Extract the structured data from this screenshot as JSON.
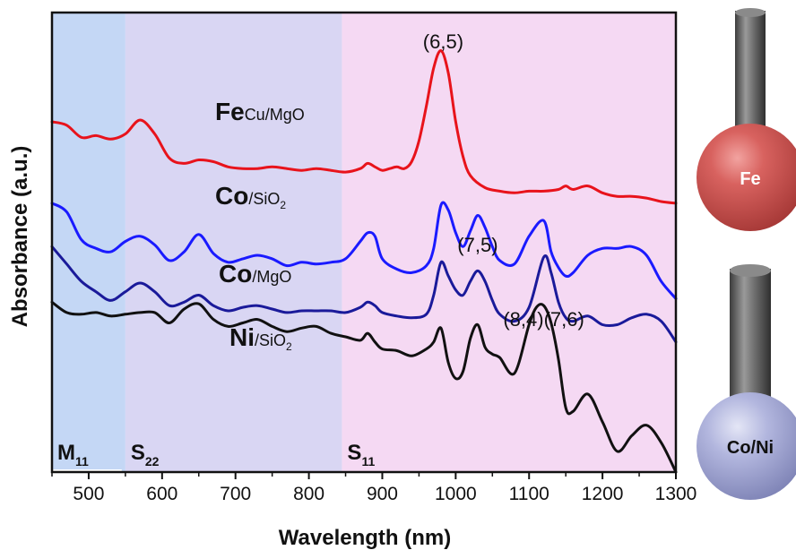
{
  "chart_data": {
    "type": "line",
    "xlabel": "Wavelength (nm)",
    "ylabel": "Absorbance (a.u.)",
    "xlim": [
      450,
      1300
    ],
    "x_ticks": [
      500,
      600,
      700,
      800,
      900,
      1000,
      1100,
      1200,
      1300
    ],
    "grid": false,
    "regions": [
      {
        "label": "M",
        "subscript": "11",
        "x_range": [
          450,
          550
        ],
        "color": "#c4d7f5"
      },
      {
        "label": "S",
        "subscript": "22",
        "x_range": [
          550,
          845
        ],
        "color": "#d9d6f3"
      },
      {
        "label": "S",
        "subscript": "11",
        "x_range": [
          845,
          1300
        ],
        "color": "#f5d9f3"
      }
    ],
    "annotations": [
      {
        "text": "(6,5)",
        "x": 983
      },
      {
        "text": "(7,5)",
        "x": 1030
      },
      {
        "text": "(8,4)(7,6)",
        "x": 1120
      }
    ],
    "series": [
      {
        "name_main": "Fe",
        "name_sub": "Cu/MgO",
        "name_sub2": "",
        "color": "#e8131b",
        "x": [
          450,
          470,
          490,
          510,
          530,
          550,
          570,
          590,
          610,
          630,
          650,
          670,
          690,
          710,
          730,
          750,
          770,
          790,
          810,
          830,
          850,
          870,
          880,
          890,
          900,
          910,
          920,
          930,
          940,
          950,
          960,
          970,
          980,
          990,
          1000,
          1010,
          1020,
          1040,
          1060,
          1080,
          1100,
          1120,
          1140,
          1150,
          1160,
          1180,
          1200,
          1220,
          1240,
          1260,
          1280,
          1300
        ],
        "y": [
          0.87,
          0.85,
          0.78,
          0.79,
          0.77,
          0.8,
          0.88,
          0.8,
          0.66,
          0.63,
          0.65,
          0.64,
          0.61,
          0.6,
          0.6,
          0.61,
          0.6,
          0.59,
          0.6,
          0.59,
          0.58,
          0.6,
          0.63,
          0.61,
          0.59,
          0.6,
          0.61,
          0.6,
          0.64,
          0.76,
          0.96,
          1.18,
          1.28,
          1.15,
          0.87,
          0.67,
          0.56,
          0.49,
          0.47,
          0.46,
          0.47,
          0.47,
          0.48,
          0.5,
          0.48,
          0.5,
          0.46,
          0.44,
          0.44,
          0.43,
          0.41,
          0.4
        ]
      },
      {
        "name_main": "Co",
        "name_sub": "/SiO",
        "name_sub2": "2",
        "color": "#1a1aff",
        "x": [
          450,
          470,
          490,
          510,
          530,
          550,
          570,
          590,
          610,
          630,
          650,
          670,
          690,
          710,
          730,
          750,
          770,
          790,
          810,
          830,
          850,
          870,
          880,
          890,
          900,
          920,
          940,
          960,
          970,
          980,
          990,
          1000,
          1010,
          1020,
          1030,
          1040,
          1050,
          1060,
          1080,
          1100,
          1120,
          1130,
          1140,
          1150,
          1160,
          1180,
          1200,
          1220,
          1240,
          1260,
          1280,
          1300
        ],
        "y": [
          0.4,
          0.35,
          0.19,
          0.14,
          0.12,
          0.18,
          0.21,
          0.16,
          0.07,
          0.12,
          0.22,
          0.11,
          0.06,
          0.08,
          0.1,
          0.08,
          0.04,
          0.06,
          0.05,
          0.06,
          0.08,
          0.18,
          0.23,
          0.21,
          0.08,
          0.02,
          0.0,
          0.04,
          0.14,
          0.39,
          0.36,
          0.23,
          0.15,
          0.24,
          0.33,
          0.26,
          0.15,
          0.07,
          0.05,
          0.21,
          0.3,
          0.12,
          0.03,
          -0.02,
          0.0,
          0.1,
          0.14,
          0.14,
          0.15,
          0.1,
          -0.05,
          -0.15
        ]
      },
      {
        "name_main": "Co",
        "name_sub": "/MgO",
        "name_sub2": "",
        "color": "#1a1a9a",
        "x": [
          450,
          470,
          490,
          510,
          530,
          550,
          570,
          590,
          610,
          630,
          650,
          670,
          690,
          710,
          730,
          750,
          770,
          790,
          810,
          830,
          850,
          870,
          880,
          890,
          900,
          920,
          940,
          960,
          970,
          980,
          990,
          1000,
          1010,
          1020,
          1030,
          1040,
          1050,
          1060,
          1080,
          1100,
          1120,
          1130,
          1140,
          1150,
          1160,
          1180,
          1200,
          1220,
          1240,
          1260,
          1280,
          1300
        ],
        "y": [
          0.15,
          0.05,
          -0.05,
          -0.11,
          -0.16,
          -0.11,
          -0.06,
          -0.11,
          -0.19,
          -0.17,
          -0.13,
          -0.19,
          -0.22,
          -0.2,
          -0.19,
          -0.21,
          -0.23,
          -0.22,
          -0.22,
          -0.22,
          -0.23,
          -0.2,
          -0.17,
          -0.19,
          -0.23,
          -0.25,
          -0.26,
          -0.24,
          -0.13,
          0.06,
          -0.02,
          -0.1,
          -0.13,
          -0.05,
          0.01,
          -0.05,
          -0.16,
          -0.24,
          -0.28,
          -0.2,
          0.09,
          0.0,
          -0.17,
          -0.26,
          -0.28,
          -0.25,
          -0.3,
          -0.3,
          -0.26,
          -0.24,
          -0.28,
          -0.4
        ]
      },
      {
        "name_main": "Ni",
        "name_sub": "/SiO",
        "name_sub2": "2",
        "color": "#111111",
        "x": [
          450,
          470,
          490,
          510,
          530,
          550,
          570,
          590,
          610,
          630,
          650,
          670,
          690,
          710,
          730,
          750,
          770,
          790,
          810,
          830,
          850,
          870,
          880,
          890,
          900,
          920,
          940,
          960,
          970,
          980,
          990,
          1000,
          1010,
          1020,
          1030,
          1040,
          1050,
          1060,
          1080,
          1100,
          1110,
          1120,
          1130,
          1140,
          1150,
          1160,
          1180,
          1200,
          1220,
          1240,
          1260,
          1280,
          1300
        ],
        "y": [
          -0.17,
          -0.23,
          -0.24,
          -0.23,
          -0.25,
          -0.24,
          -0.23,
          -0.23,
          -0.29,
          -0.21,
          -0.18,
          -0.27,
          -0.31,
          -0.29,
          -0.27,
          -0.31,
          -0.34,
          -0.32,
          -0.31,
          -0.35,
          -0.37,
          -0.39,
          -0.35,
          -0.4,
          -0.44,
          -0.45,
          -0.48,
          -0.44,
          -0.4,
          -0.32,
          -0.52,
          -0.61,
          -0.57,
          -0.38,
          -0.3,
          -0.43,
          -0.47,
          -0.49,
          -0.58,
          -0.3,
          -0.2,
          -0.19,
          -0.29,
          -0.5,
          -0.78,
          -0.8,
          -0.7,
          -0.86,
          -1.03,
          -0.94,
          -0.88,
          -0.98,
          -1.15
        ]
      }
    ]
  },
  "illustrations": {
    "top": {
      "label": "Fe",
      "ball_color": "#cf5452"
    },
    "bottom": {
      "label": "Co/Ni",
      "ball_color": "#a7abd6"
    }
  }
}
